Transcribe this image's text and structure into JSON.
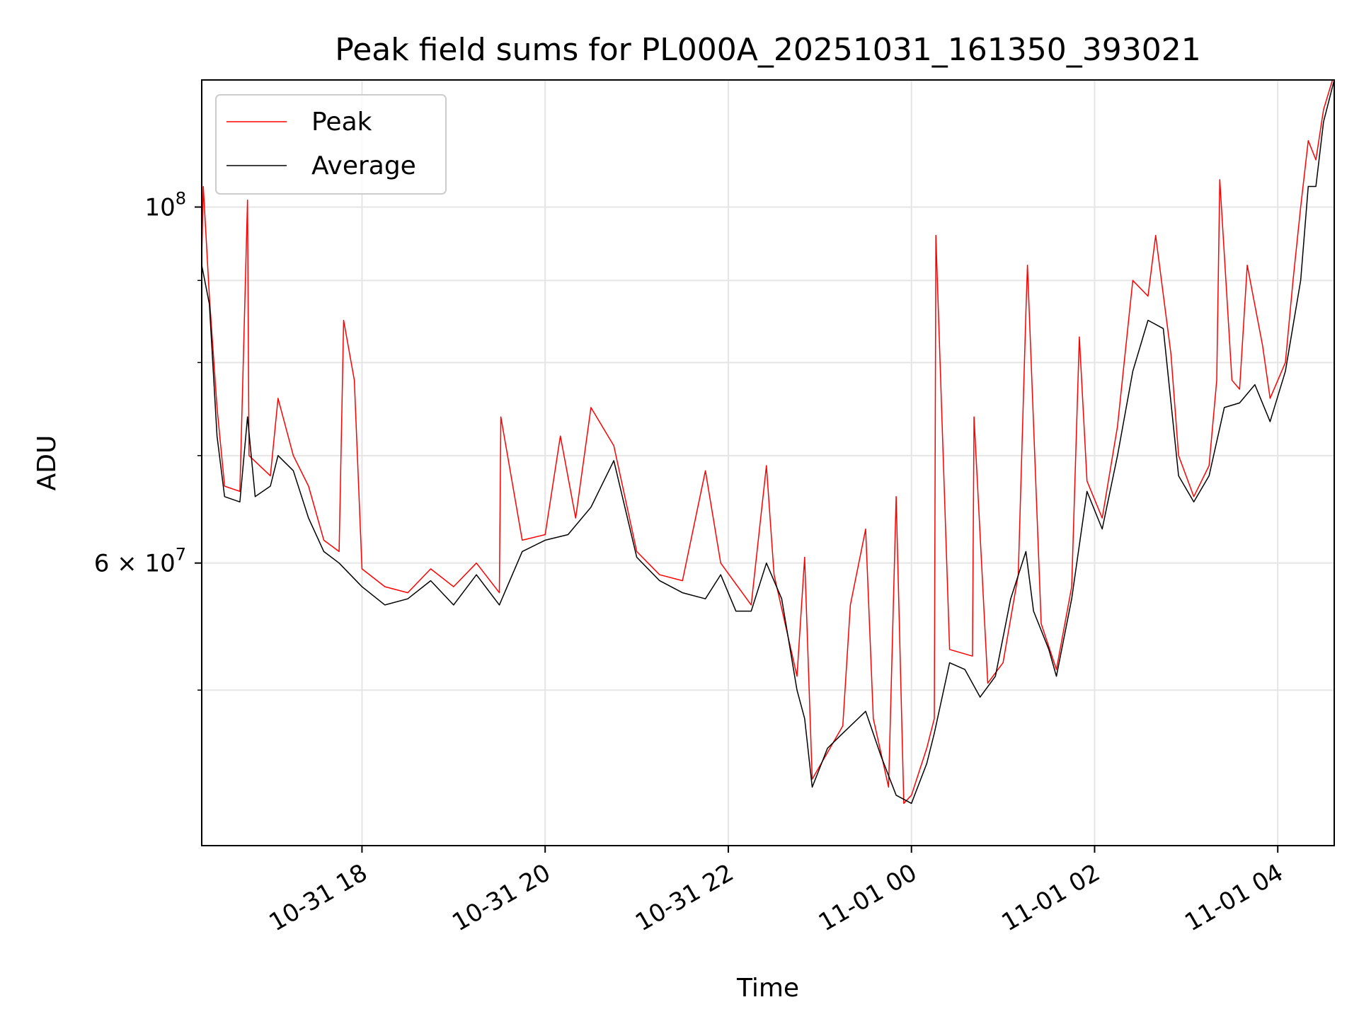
{
  "chart_data": {
    "type": "line",
    "title": "Peak field sums for PL000A_20251031_161350_393021",
    "xlabel": "Time",
    "ylabel": "ADU",
    "y_scale": "log",
    "ylim": [
      40000000,
      120000000
    ],
    "xlim": [
      "2025-10-31T16:15",
      "2025-11-01T04:37"
    ],
    "x_ticks": [
      {
        "value": "2025-10-31T18:00",
        "label": "10-31 18"
      },
      {
        "value": "2025-10-31T20:00",
        "label": "10-31 20"
      },
      {
        "value": "2025-10-31T22:00",
        "label": "10-31 22"
      },
      {
        "value": "2025-11-01T00:00",
        "label": "11-01 00"
      },
      {
        "value": "2025-11-01T02:00",
        "label": "11-01 02"
      },
      {
        "value": "2025-11-01T04:00",
        "label": "11-01 04"
      }
    ],
    "y_major_ticks": [
      {
        "value": 60000000,
        "label": "6 × 10⁷",
        "base": "6 × 10",
        "exp": "7"
      },
      {
        "value": 100000000,
        "label": "10⁸",
        "base": "10",
        "exp": "8"
      }
    ],
    "y_minor_gridlines": [
      50000000,
      70000000,
      80000000,
      90000000
    ],
    "grid": true,
    "legend_position": "top-left",
    "series": [
      {
        "name": "Peak",
        "color": "#ff0000",
        "points": [
          [
            "2025-10-31T16:15",
            93000000
          ],
          [
            "2025-10-31T16:16",
            103000000
          ],
          [
            "2025-10-31T16:20",
            88000000
          ],
          [
            "2025-10-31T16:25",
            75000000
          ],
          [
            "2025-10-31T16:30",
            67000000
          ],
          [
            "2025-10-31T16:40",
            66500000
          ],
          [
            "2025-10-31T16:45",
            101000000
          ],
          [
            "2025-10-31T16:46",
            70000000
          ],
          [
            "2025-10-31T17:00",
            68000000
          ],
          [
            "2025-10-31T17:05",
            76000000
          ],
          [
            "2025-10-31T17:15",
            70000000
          ],
          [
            "2025-10-31T17:25",
            67000000
          ],
          [
            "2025-10-31T17:35",
            62000000
          ],
          [
            "2025-10-31T17:45",
            61000000
          ],
          [
            "2025-10-31T17:48",
            85000000
          ],
          [
            "2025-10-31T17:55",
            78000000
          ],
          [
            "2025-10-31T18:00",
            59500000
          ],
          [
            "2025-10-31T18:15",
            58000000
          ],
          [
            "2025-10-31T18:30",
            57500000
          ],
          [
            "2025-10-31T18:45",
            59500000
          ],
          [
            "2025-10-31T19:00",
            58000000
          ],
          [
            "2025-10-31T19:15",
            60000000
          ],
          [
            "2025-10-31T19:30",
            57500000
          ],
          [
            "2025-10-31T19:31",
            74000000
          ],
          [
            "2025-10-31T19:45",
            62000000
          ],
          [
            "2025-10-31T20:00",
            62500000
          ],
          [
            "2025-10-31T20:10",
            72000000
          ],
          [
            "2025-10-31T20:20",
            64000000
          ],
          [
            "2025-10-31T20:30",
            75000000
          ],
          [
            "2025-10-31T20:45",
            71000000
          ],
          [
            "2025-10-31T21:00",
            61000000
          ],
          [
            "2025-10-31T21:15",
            59000000
          ],
          [
            "2025-10-31T21:30",
            58500000
          ],
          [
            "2025-10-31T21:45",
            68500000
          ],
          [
            "2025-10-31T21:55",
            60000000
          ],
          [
            "2025-10-31T22:15",
            56500000
          ],
          [
            "2025-10-31T22:25",
            69000000
          ],
          [
            "2025-10-31T22:30",
            59000000
          ],
          [
            "2025-10-31T22:45",
            51000000
          ],
          [
            "2025-10-31T22:50",
            60500000
          ],
          [
            "2025-10-31T22:55",
            44000000
          ],
          [
            "2025-10-31T23:15",
            47500000
          ],
          [
            "2025-10-31T23:20",
            56500000
          ],
          [
            "2025-10-31T23:30",
            63000000
          ],
          [
            "2025-10-31T23:35",
            48000000
          ],
          [
            "2025-10-31T23:45",
            43500000
          ],
          [
            "2025-10-31T23:50",
            66000000
          ],
          [
            "2025-10-31T23:55",
            42500000
          ],
          [
            "2025-11-01T00:00",
            43000000
          ],
          [
            "2025-11-01T00:10",
            46000000
          ],
          [
            "2025-11-01T00:15",
            48000000
          ],
          [
            "2025-11-01T00:16",
            96000000
          ],
          [
            "2025-11-01T00:25",
            53000000
          ],
          [
            "2025-11-01T00:40",
            52500000
          ],
          [
            "2025-11-01T00:41",
            74000000
          ],
          [
            "2025-11-01T00:50",
            50500000
          ],
          [
            "2025-11-01T01:00",
            52000000
          ],
          [
            "2025-11-01T01:10",
            59000000
          ],
          [
            "2025-11-01T01:15",
            86000000
          ],
          [
            "2025-11-01T01:16",
            92000000
          ],
          [
            "2025-11-01T01:25",
            55000000
          ],
          [
            "2025-11-01T01:35",
            51500000
          ],
          [
            "2025-11-01T01:45",
            58000000
          ],
          [
            "2025-11-01T01:50",
            83000000
          ],
          [
            "2025-11-01T01:55",
            67500000
          ],
          [
            "2025-11-01T02:05",
            64000000
          ],
          [
            "2025-11-01T02:15",
            73000000
          ],
          [
            "2025-11-01T02:25",
            90000000
          ],
          [
            "2025-11-01T02:35",
            88000000
          ],
          [
            "2025-11-01T02:40",
            96000000
          ],
          [
            "2025-11-01T02:50",
            81000000
          ],
          [
            "2025-11-01T02:55",
            70000000
          ],
          [
            "2025-11-01T03:05",
            66000000
          ],
          [
            "2025-11-01T03:15",
            69000000
          ],
          [
            "2025-11-01T03:20",
            78000000
          ],
          [
            "2025-11-01T03:22",
            104000000
          ],
          [
            "2025-11-01T03:30",
            78000000
          ],
          [
            "2025-11-01T03:35",
            77000000
          ],
          [
            "2025-11-01T03:40",
            92000000
          ],
          [
            "2025-11-01T03:50",
            82000000
          ],
          [
            "2025-11-01T03:55",
            76000000
          ],
          [
            "2025-11-01T04:05",
            80000000
          ],
          [
            "2025-11-01T04:10",
            90000000
          ],
          [
            "2025-11-01T04:15",
            100000000
          ],
          [
            "2025-11-01T04:20",
            110000000
          ],
          [
            "2025-11-01T04:25",
            107000000
          ],
          [
            "2025-11-01T04:30",
            115000000
          ],
          [
            "2025-11-01T04:37",
            121000000
          ]
        ]
      },
      {
        "name": "Average",
        "color": "#000000",
        "points": [
          [
            "2025-10-31T16:15",
            92000000
          ],
          [
            "2025-10-31T16:20",
            87000000
          ],
          [
            "2025-10-31T16:25",
            72000000
          ],
          [
            "2025-10-31T16:30",
            66000000
          ],
          [
            "2025-10-31T16:40",
            65500000
          ],
          [
            "2025-10-31T16:45",
            74000000
          ],
          [
            "2025-10-31T16:50",
            66000000
          ],
          [
            "2025-10-31T17:00",
            67000000
          ],
          [
            "2025-10-31T17:05",
            70000000
          ],
          [
            "2025-10-31T17:15",
            68500000
          ],
          [
            "2025-10-31T17:25",
            64000000
          ],
          [
            "2025-10-31T17:35",
            61000000
          ],
          [
            "2025-10-31T17:45",
            60000000
          ],
          [
            "2025-10-31T18:00",
            58000000
          ],
          [
            "2025-10-31T18:15",
            56500000
          ],
          [
            "2025-10-31T18:30",
            57000000
          ],
          [
            "2025-10-31T18:45",
            58500000
          ],
          [
            "2025-10-31T19:00",
            56500000
          ],
          [
            "2025-10-31T19:15",
            59000000
          ],
          [
            "2025-10-31T19:30",
            56500000
          ],
          [
            "2025-10-31T19:45",
            61000000
          ],
          [
            "2025-10-31T20:00",
            62000000
          ],
          [
            "2025-10-31T20:15",
            62500000
          ],
          [
            "2025-10-31T20:30",
            65000000
          ],
          [
            "2025-10-31T20:45",
            69500000
          ],
          [
            "2025-10-31T21:00",
            60500000
          ],
          [
            "2025-10-31T21:15",
            58500000
          ],
          [
            "2025-10-31T21:30",
            57500000
          ],
          [
            "2025-10-31T21:45",
            57000000
          ],
          [
            "2025-10-31T21:55",
            59000000
          ],
          [
            "2025-10-31T22:05",
            56000000
          ],
          [
            "2025-10-31T22:15",
            56000000
          ],
          [
            "2025-10-31T22:25",
            60000000
          ],
          [
            "2025-10-31T22:35",
            57000000
          ],
          [
            "2025-10-31T22:45",
            50000000
          ],
          [
            "2025-10-31T22:50",
            48000000
          ],
          [
            "2025-10-31T22:55",
            43500000
          ],
          [
            "2025-10-31T23:05",
            46000000
          ],
          [
            "2025-10-31T23:15",
            47000000
          ],
          [
            "2025-10-31T23:30",
            48500000
          ],
          [
            "2025-10-31T23:40",
            45500000
          ],
          [
            "2025-10-31T23:50",
            43000000
          ],
          [
            "2025-11-01T00:00",
            42500000
          ],
          [
            "2025-11-01T00:10",
            45000000
          ],
          [
            "2025-11-01T00:15",
            47000000
          ],
          [
            "2025-11-01T00:25",
            52000000
          ],
          [
            "2025-11-01T00:35",
            51500000
          ],
          [
            "2025-11-01T00:45",
            49500000
          ],
          [
            "2025-11-01T00:55",
            51000000
          ],
          [
            "2025-11-01T01:05",
            57000000
          ],
          [
            "2025-11-01T01:15",
            61000000
          ],
          [
            "2025-11-01T01:20",
            56000000
          ],
          [
            "2025-11-01T01:30",
            53000000
          ],
          [
            "2025-11-01T01:35",
            51000000
          ],
          [
            "2025-11-01T01:45",
            57000000
          ],
          [
            "2025-11-01T01:55",
            66500000
          ],
          [
            "2025-11-01T02:05",
            63000000
          ],
          [
            "2025-11-01T02:15",
            70000000
          ],
          [
            "2025-11-01T02:25",
            79000000
          ],
          [
            "2025-11-01T02:35",
            85000000
          ],
          [
            "2025-11-01T02:45",
            84000000
          ],
          [
            "2025-11-01T02:55",
            68000000
          ],
          [
            "2025-11-01T03:05",
            65500000
          ],
          [
            "2025-11-01T03:15",
            68000000
          ],
          [
            "2025-11-01T03:25",
            75000000
          ],
          [
            "2025-11-01T03:35",
            75500000
          ],
          [
            "2025-11-01T03:45",
            77500000
          ],
          [
            "2025-11-01T03:55",
            73500000
          ],
          [
            "2025-11-01T04:05",
            79000000
          ],
          [
            "2025-11-01T04:15",
            90000000
          ],
          [
            "2025-11-01T04:20",
            103000000
          ],
          [
            "2025-11-01T04:25",
            103000000
          ],
          [
            "2025-11-01T04:30",
            113000000
          ],
          [
            "2025-11-01T04:37",
            120000000
          ]
        ]
      }
    ]
  }
}
